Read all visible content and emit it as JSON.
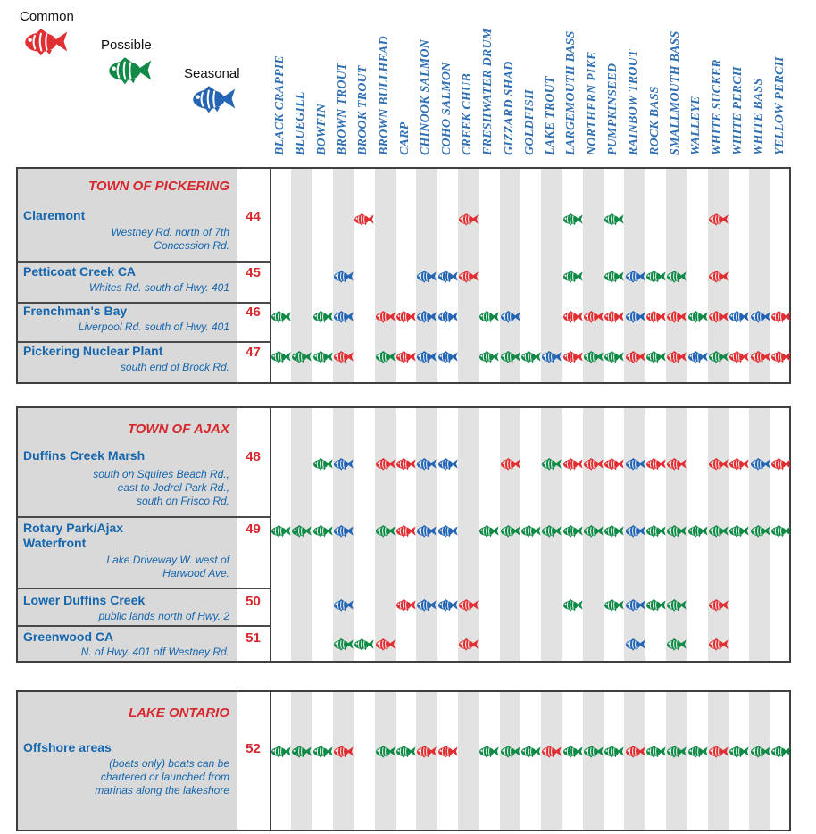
{
  "legend": {
    "items": [
      {
        "code": "C",
        "label": "Common"
      },
      {
        "code": "P",
        "label": "Possible"
      },
      {
        "code": "S",
        "label": "Seasonal"
      }
    ]
  },
  "statuses": {
    "C": {
      "label": "Common",
      "color": "#e02f33"
    },
    "P": {
      "label": "Possible",
      "color": "#128a47"
    },
    "S": {
      "label": "Seasonal",
      "color": "#2566b4"
    }
  },
  "chart_data": {
    "type": "table",
    "columns": [
      "BLACK CRAPPIE",
      "BLUEGILL",
      "BOWFIN",
      "BROWN TROUT",
      "BROOK TROUT",
      "BROWN BULLHEAD",
      "CARP",
      "CHINOOK SALMON",
      "COHO SALMON",
      "CREEK CHUB",
      "FRESHWATER DRUM",
      "GIZZARD SHAD",
      "GOLDFISH",
      "LAKE TROUT",
      "LARGEMOUTH BASS",
      "NORTHERN PIKE",
      "PUMPKINSEED",
      "RAINBOW TROUT",
      "ROCK BASS",
      "SMALLMOUTH BASS",
      "WALLEYE",
      "WHITE SUCKER",
      "WHITE PERCH",
      "WHITE BASS",
      "YELLOW PERCH"
    ],
    "sections": [
      {
        "title": "TOWN OF PICKERING",
        "rows": [
          {
            "number": "44",
            "name_lines": [
              "Claremont"
            ],
            "address_lines": [
              "Westney Rd. north of 7th",
              "Concession Rd."
            ],
            "fish": {
              "4": "C",
              "9": "C",
              "14": "P",
              "16": "P",
              "21": "C"
            }
          },
          {
            "number": "45",
            "name_lines": [
              "Petticoat Creek CA"
            ],
            "address_lines": [
              "Whites Rd. south of Hwy. 401"
            ],
            "fish": {
              "3": "S",
              "7": "S",
              "8": "S",
              "9": "C",
              "14": "P",
              "16": "P",
              "17": "S",
              "18": "P",
              "19": "P",
              "21": "C"
            }
          },
          {
            "number": "46",
            "name_lines": [
              "Frenchman's Bay"
            ],
            "address_lines": [
              "Liverpool Rd. south of Hwy. 401"
            ],
            "fish": {
              "0": "P",
              "2": "P",
              "3": "S",
              "5": "C",
              "6": "C",
              "7": "S",
              "8": "S",
              "10": "P",
              "11": "S",
              "14": "C",
              "15": "C",
              "16": "C",
              "17": "S",
              "18": "C",
              "19": "C",
              "20": "P",
              "21": "C",
              "22": "S",
              "23": "S",
              "24": "C"
            }
          },
          {
            "number": "47",
            "name_lines": [
              "Pickering Nuclear Plant"
            ],
            "address_lines": [
              "south end of Brock Rd."
            ],
            "fish": {
              "0": "P",
              "1": "P",
              "2": "P",
              "3": "C",
              "5": "P",
              "6": "C",
              "7": "S",
              "8": "S",
              "10": "P",
              "11": "P",
              "12": "P",
              "13": "S",
              "14": "C",
              "15": "P",
              "16": "P",
              "17": "C",
              "18": "P",
              "19": "C",
              "20": "S",
              "21": "P",
              "22": "C",
              "23": "C",
              "24": "C"
            }
          }
        ]
      },
      {
        "title": "TOWN OF AJAX",
        "rows": [
          {
            "number": "48",
            "name_lines": [
              "Duffins Creek Marsh"
            ],
            "address_lines": [
              "south on Squires Beach Rd.,",
              "east to Jodrel Park Rd.,",
              "south on Frisco Rd."
            ],
            "fish": {
              "2": "P",
              "3": "S",
              "5": "C",
              "6": "C",
              "7": "S",
              "8": "S",
              "11": "C",
              "13": "P",
              "14": "C",
              "15": "C",
              "16": "C",
              "17": "S",
              "18": "C",
              "19": "C",
              "21": "C",
              "22": "C",
              "23": "S",
              "24": "C"
            }
          },
          {
            "number": "49",
            "name_lines": [
              "Rotary Park/Ajax",
              "Waterfront"
            ],
            "address_lines": [
              "Lake Driveway W. west of",
              "Harwood Ave."
            ],
            "fish": {
              "0": "P",
              "1": "P",
              "2": "P",
              "3": "S",
              "5": "P",
              "6": "C",
              "7": "S",
              "8": "S",
              "10": "P",
              "11": "P",
              "12": "P",
              "13": "P",
              "14": "P",
              "15": "P",
              "16": "P",
              "17": "S",
              "18": "P",
              "19": "P",
              "20": "P",
              "21": "P",
              "22": "P",
              "23": "P",
              "24": "P"
            }
          },
          {
            "number": "50",
            "name_lines": [
              "Lower Duffins Creek"
            ],
            "address_lines": [
              "public lands north of Hwy. 2"
            ],
            "fish": {
              "3": "S",
              "6": "C",
              "7": "S",
              "8": "S",
              "9": "C",
              "14": "P",
              "16": "P",
              "17": "S",
              "18": "P",
              "19": "P",
              "21": "C"
            }
          },
          {
            "number": "51",
            "name_lines": [
              "Greenwood CA"
            ],
            "address_lines": [
              "N. of Hwy. 401 off Westney Rd."
            ],
            "fish": {
              "3": "P",
              "4": "P",
              "5": "C",
              "9": "C",
              "17": "S",
              "19": "P",
              "21": "C"
            }
          }
        ]
      },
      {
        "title": "LAKE ONTARIO",
        "rows": [
          {
            "number": "52",
            "name_lines": [
              "Offshore areas"
            ],
            "address_lines": [
              "(boats only) boats can be",
              "chartered or launched from",
              "marinas along the lakeshore"
            ],
            "fish": {
              "0": "P",
              "1": "P",
              "2": "P",
              "3": "C",
              "5": "P",
              "6": "P",
              "7": "C",
              "8": "C",
              "10": "P",
              "11": "P",
              "12": "P",
              "13": "C",
              "14": "P",
              "15": "P",
              "16": "P",
              "17": "C",
              "18": "P",
              "19": "P",
              "20": "P",
              "21": "C",
              "22": "P",
              "23": "P",
              "24": "P"
            }
          }
        ]
      }
    ]
  }
}
